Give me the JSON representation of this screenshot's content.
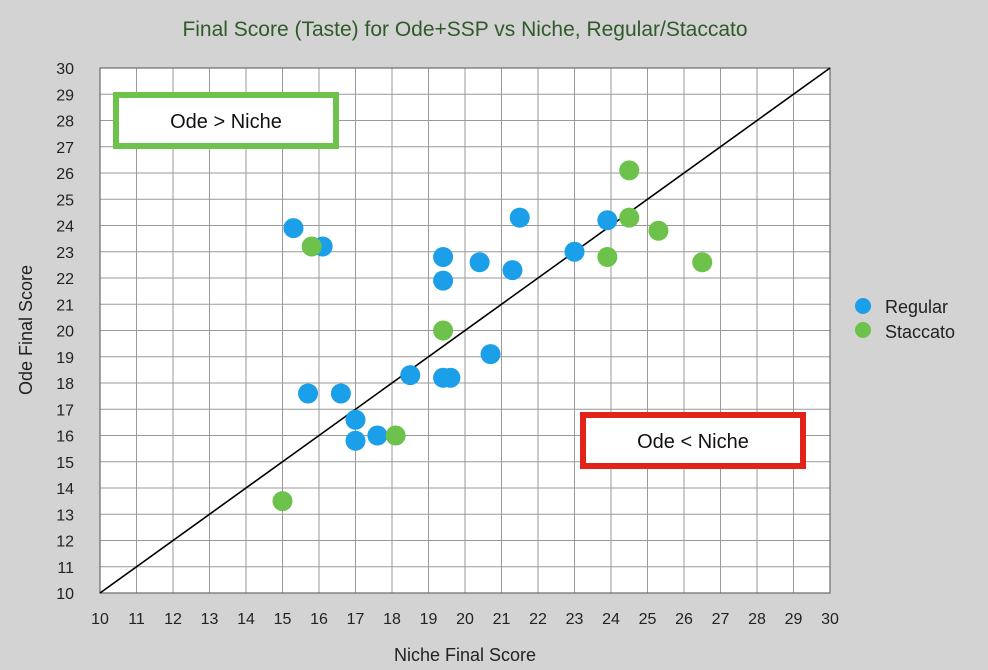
{
  "chart_data": {
    "type": "scatter",
    "title": "Final Score (Taste) for Ode+SSP vs Niche, Regular/Staccato",
    "xlabel": "Niche Final Score",
    "ylabel": "Ode Final Score",
    "xlim": [
      10,
      30
    ],
    "ylim": [
      10,
      30
    ],
    "xticks": [
      10,
      11,
      12,
      13,
      14,
      15,
      16,
      17,
      18,
      19,
      20,
      21,
      22,
      23,
      24,
      25,
      26,
      27,
      28,
      29,
      30
    ],
    "yticks": [
      10,
      11,
      12,
      13,
      14,
      15,
      16,
      17,
      18,
      19,
      20,
      21,
      22,
      23,
      24,
      25,
      26,
      27,
      28,
      29,
      30
    ],
    "grid": true,
    "legend_position": "right",
    "reference_line": {
      "from": [
        10,
        10
      ],
      "to": [
        30,
        30
      ]
    },
    "annotations": [
      {
        "text": "Ode > Niche",
        "color": "#6cc24a"
      },
      {
        "text": "Ode < Niche",
        "color": "#e2231a"
      }
    ],
    "series": [
      {
        "name": "Regular",
        "color": "#1a9fe8",
        "points": [
          [
            15.3,
            23.9
          ],
          [
            16.1,
            23.2
          ],
          [
            15.7,
            17.6
          ],
          [
            16.6,
            17.6
          ],
          [
            17.0,
            16.6
          ],
          [
            17.0,
            15.8
          ],
          [
            17.6,
            16.0
          ],
          [
            18.5,
            18.3
          ],
          [
            19.4,
            18.2
          ],
          [
            19.6,
            18.2
          ],
          [
            19.4,
            22.8
          ],
          [
            19.4,
            21.9
          ],
          [
            20.4,
            22.6
          ],
          [
            20.7,
            19.1
          ],
          [
            21.3,
            22.3
          ],
          [
            21.5,
            24.3
          ],
          [
            23.0,
            23.0
          ],
          [
            23.9,
            24.2
          ]
        ]
      },
      {
        "name": "Staccato",
        "color": "#6cc24a",
        "points": [
          [
            15.0,
            13.5
          ],
          [
            15.8,
            23.2
          ],
          [
            18.1,
            16.0
          ],
          [
            19.4,
            20.0
          ],
          [
            23.9,
            22.8
          ],
          [
            24.5,
            26.1
          ],
          [
            24.5,
            24.3
          ],
          [
            25.3,
            23.8
          ],
          [
            26.5,
            22.6
          ]
        ]
      }
    ]
  }
}
